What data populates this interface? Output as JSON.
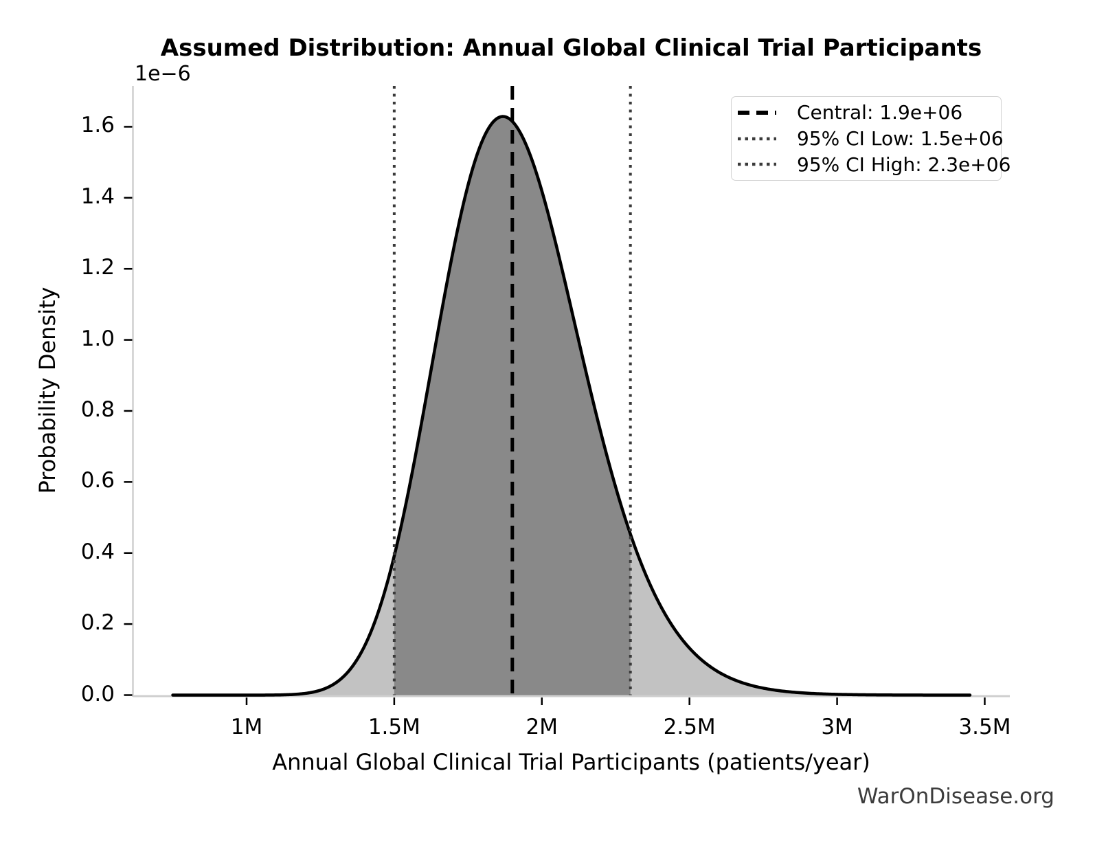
{
  "title": "Assumed Distribution: Annual Global Clinical Trial Participants",
  "watermark": "WarOnDisease.org",
  "chart_data": {
    "type": "area",
    "title": "Assumed Distribution: Annual Global Clinical Trial Participants",
    "xlabel": "Annual Global Clinical Trial Participants (patients/year)",
    "ylabel": "Probability Density",
    "y_offset_label": "1e−6",
    "grid": false,
    "legend_position": "upper right",
    "xlim": [
      615000,
      3585000
    ],
    "ylim": [
      0,
      1.715e-06
    ],
    "x_tick_values": [
      1000000,
      1500000,
      2000000,
      2500000,
      3000000,
      3500000
    ],
    "x_tick_labels": [
      "1M",
      "1.5M",
      "2M",
      "2.5M",
      "3M",
      "3.5M"
    ],
    "y_tick_values": [
      0,
      2e-07,
      4e-07,
      6e-07,
      8e-07,
      1e-06,
      1.2e-06,
      1.4e-06,
      1.6e-06
    ],
    "y_tick_labels": [
      "0.0",
      "0.2",
      "0.4",
      "0.6",
      "0.8",
      "1.0",
      "1.2",
      "1.4",
      "1.6"
    ],
    "distribution": {
      "type": "lognormal",
      "median": 1900000,
      "sigma_ln": 0.13,
      "x_start": 750000,
      "x_end": 3450000,
      "peak_density": 1.63e-06
    },
    "central": 1900000,
    "ci_low": 1500000,
    "ci_high": 2300000,
    "legend": [
      {
        "label": "Central: 1.9e+06",
        "style": "dashed",
        "color": "#000000"
      },
      {
        "label": "95% CI Low: 1.5e+06",
        "style": "dotted",
        "color": "#3a3a3a"
      },
      {
        "label": "95% CI High: 2.3e+06",
        "style": "dotted",
        "color": "#3a3a3a"
      }
    ],
    "colors": {
      "curve": "#000000",
      "central_line": "#000000",
      "ci_line": "#3a3a3a",
      "fill_light": "#c2c2c2",
      "fill_dark": "#898989",
      "spine": "#cfcfcf",
      "tick": "#000000",
      "watermark": "#3c3c3c"
    }
  }
}
